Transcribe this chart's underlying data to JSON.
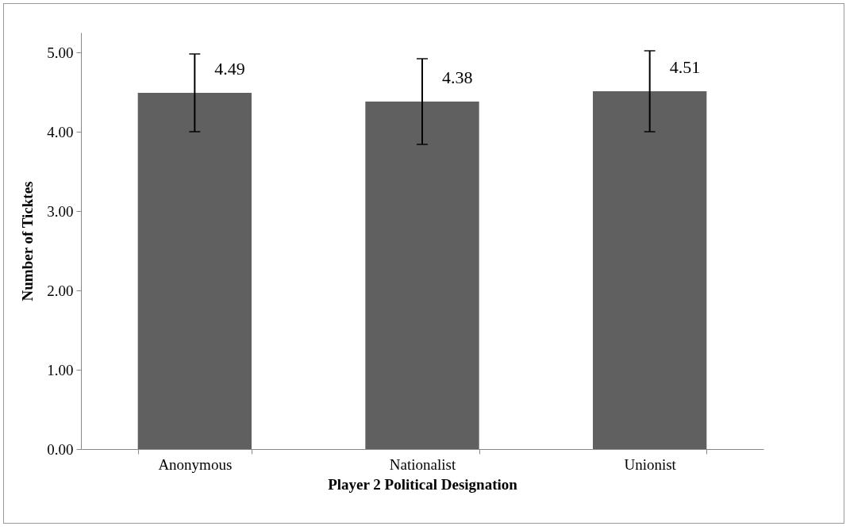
{
  "chart_data": {
    "type": "bar",
    "xlabel": "Player 2 Political Designation",
    "ylabel": "Number of Ticktes",
    "categories": [
      "Anonymous",
      "Nationalist",
      "Unionist"
    ],
    "values": [
      4.49,
      4.38,
      4.51
    ],
    "errors": [
      [
        4.0,
        4.98
      ],
      [
        3.84,
        4.92
      ],
      [
        4.0,
        5.02
      ]
    ],
    "color": "#606060",
    "data_labels": true,
    "grid": false,
    "ylim": [
      0,
      5.25
    ],
    "yticks": [
      {
        "value": 0,
        "label": "0.00"
      },
      {
        "value": 1,
        "label": "1.00"
      },
      {
        "value": 2,
        "label": "2.00"
      },
      {
        "value": 3,
        "label": "3.00"
      },
      {
        "value": 4,
        "label": "4.00"
      },
      {
        "value": 5,
        "label": "5.00"
      }
    ]
  }
}
